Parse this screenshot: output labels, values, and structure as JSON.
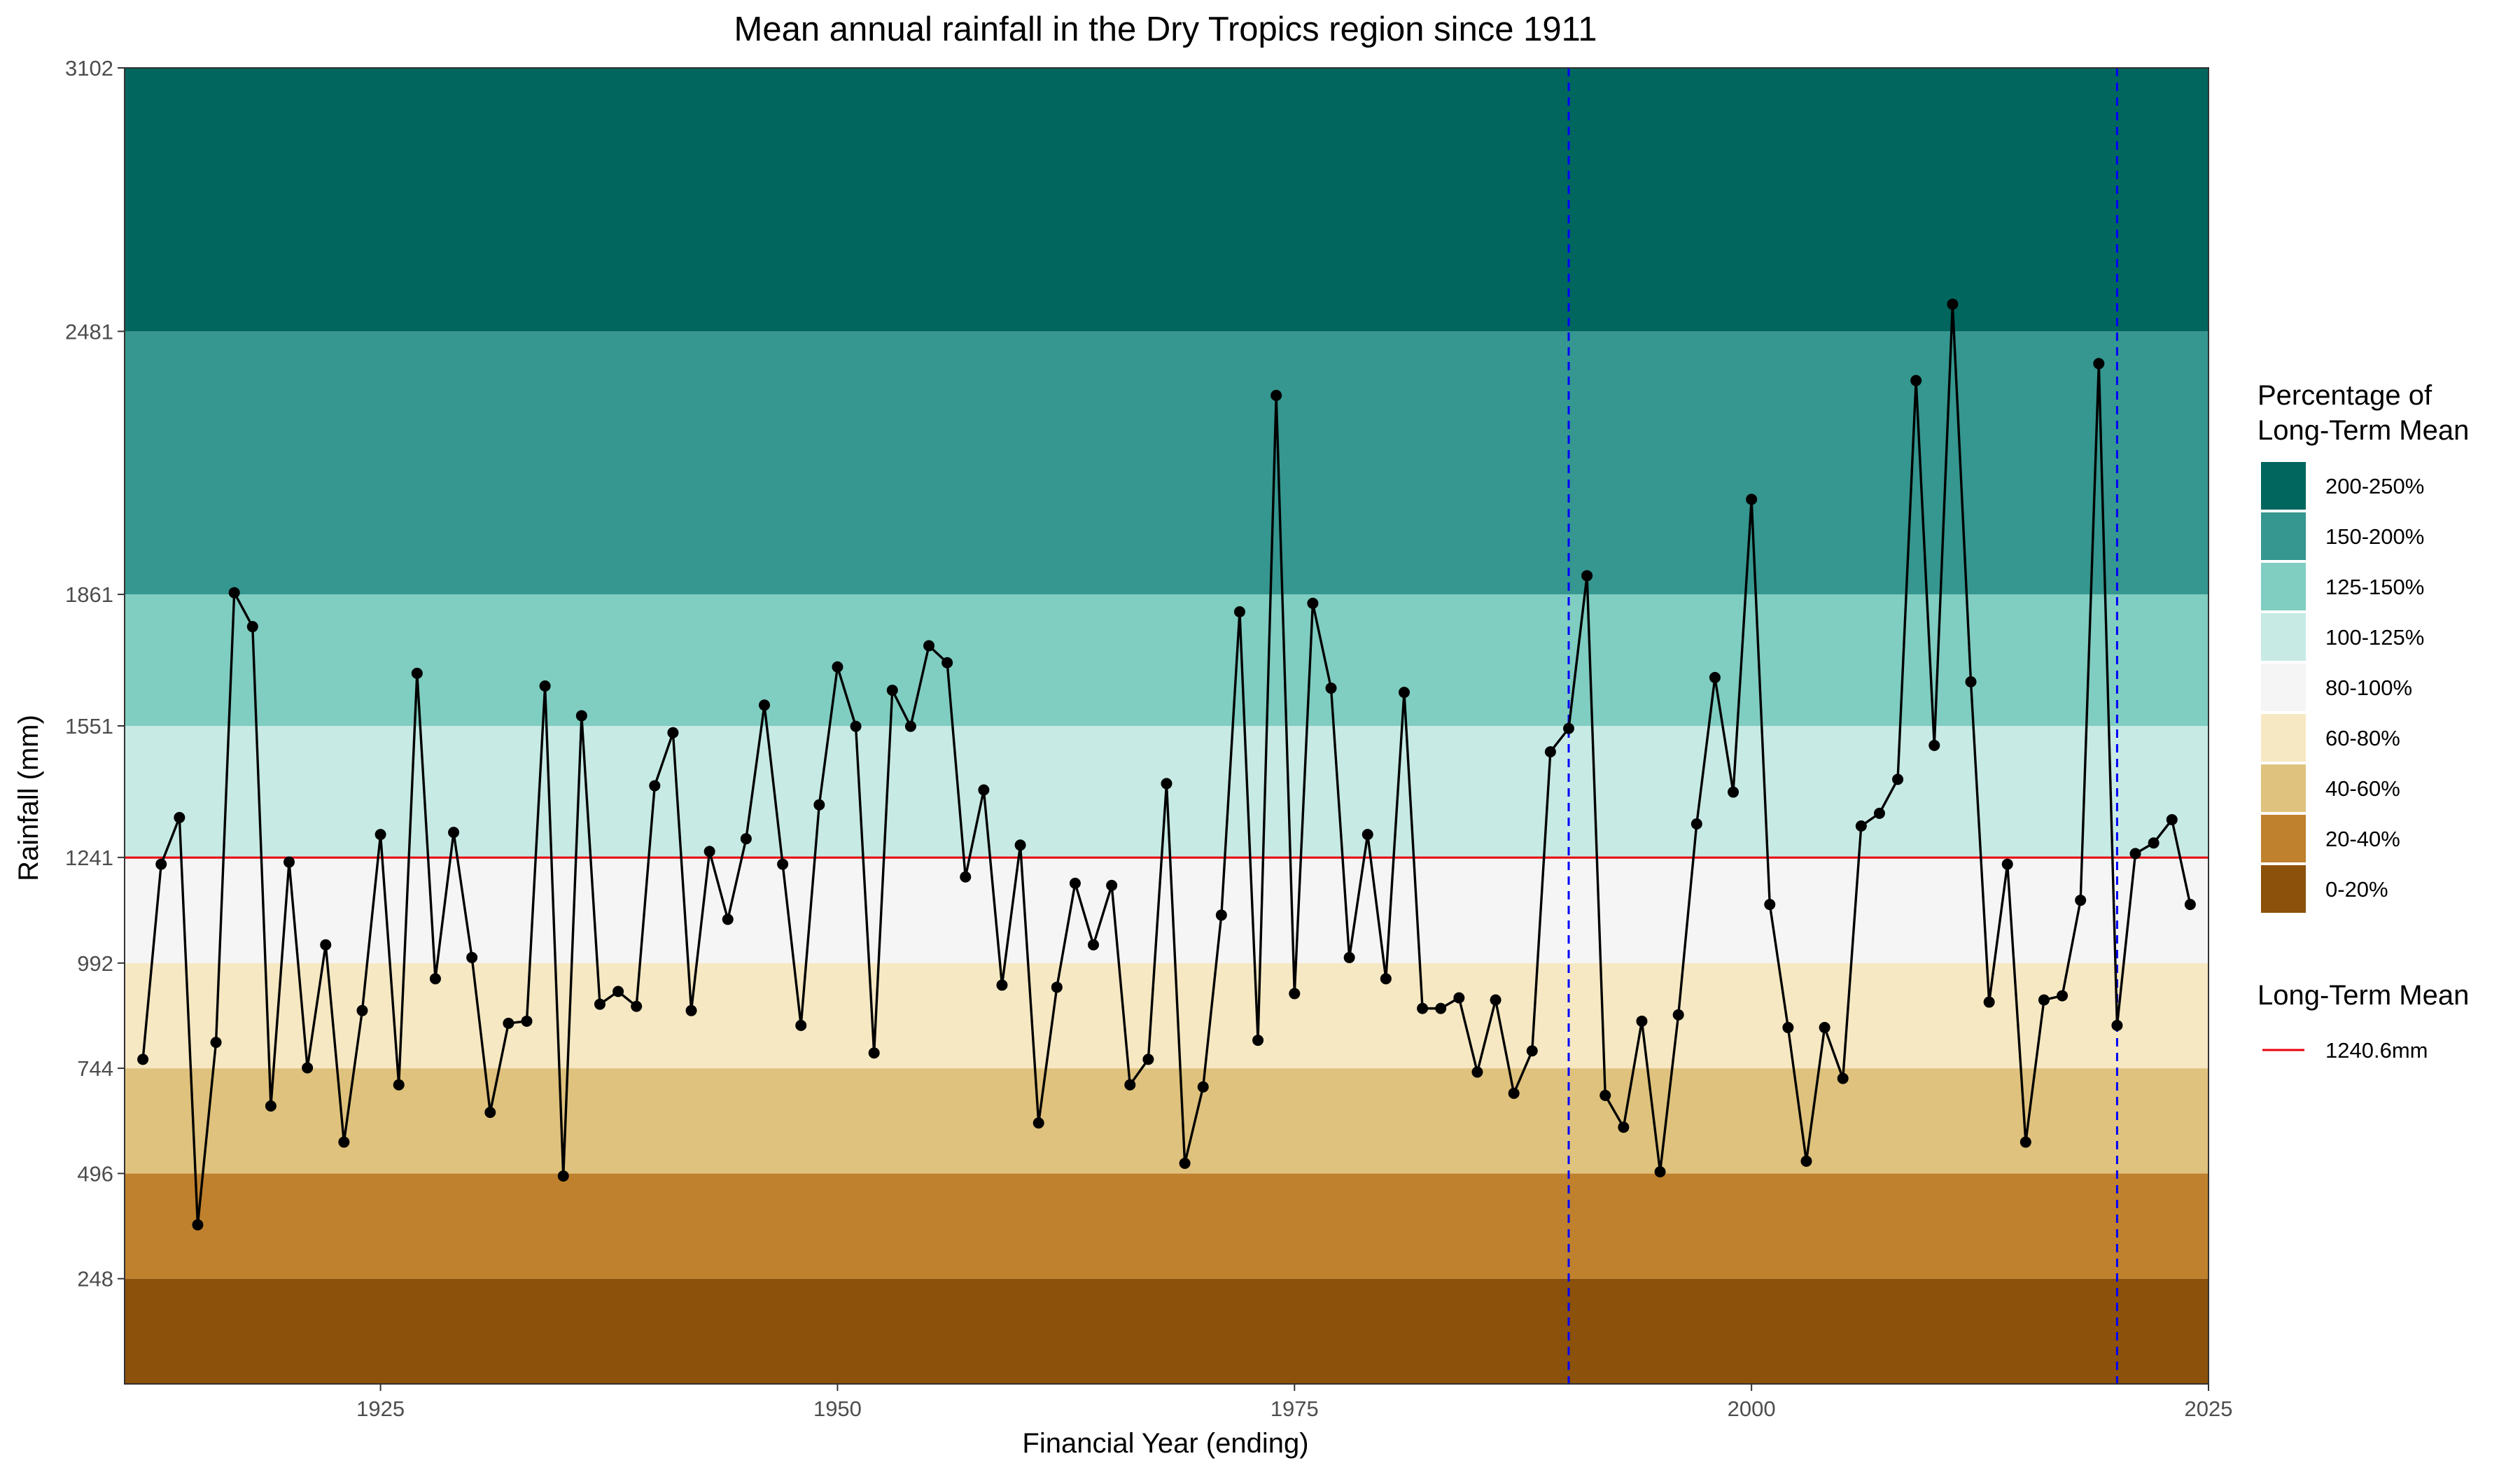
{
  "chart_data": {
    "type": "line",
    "title": "Mean annual rainfall in the Dry Tropics region since 1911",
    "xlabel": "Financial Year (ending)",
    "ylabel": "Rainfall (mm)",
    "xlim": [
      1911,
      2025
    ],
    "ylim": [
      0,
      3102
    ],
    "x_ticks": [
      1925,
      1950,
      1975,
      2000,
      2025
    ],
    "y_ticks": [
      248,
      496,
      744,
      992,
      1241,
      1551,
      1861,
      2481,
      3102
    ],
    "grid": false,
    "bands": [
      {
        "label": "0-20%",
        "from": 0,
        "to": 248,
        "color": "#8c510a"
      },
      {
        "label": "20-40%",
        "from": 248,
        "to": 496,
        "color": "#bf812d"
      },
      {
        "label": "40-60%",
        "from": 496,
        "to": 744,
        "color": "#dfc27d"
      },
      {
        "label": "60-80%",
        "from": 744,
        "to": 992,
        "color": "#f6e8c3"
      },
      {
        "label": "80-100%",
        "from": 992,
        "to": 1241,
        "color": "#f5f5f5"
      },
      {
        "label": "100-125%",
        "from": 1241,
        "to": 1551,
        "color": "#c7eae5"
      },
      {
        "label": "125-150%",
        "from": 1551,
        "to": 1861,
        "color": "#80cdc1"
      },
      {
        "label": "150-200%",
        "from": 1861,
        "to": 2481,
        "color": "#35978f"
      },
      {
        "label": "200-250%",
        "from": 2481,
        "to": 3102,
        "color": "#01665e"
      }
    ],
    "legend": {
      "title_line1": "Percentage of",
      "title_line2": "Long-Term Mean",
      "placement": "right"
    },
    "mean_line": {
      "title": "Long-Term Mean",
      "label": "1240.6mm",
      "value": 1240.6,
      "color": "#e8000b"
    },
    "vlines": [
      {
        "x": 1990,
        "color": "#0000ff",
        "style": "dashed"
      },
      {
        "x": 2020,
        "color": "#0000ff",
        "style": "dashed"
      }
    ],
    "series": [
      {
        "color": "#000000",
        "x": [
          1912,
          1913,
          1914,
          1915,
          1916,
          1917,
          1918,
          1919,
          1920,
          1921,
          1922,
          1923,
          1924,
          1925,
          1926,
          1927,
          1928,
          1929,
          1930,
          1931,
          1932,
          1933,
          1934,
          1935,
          1936,
          1937,
          1938,
          1939,
          1940,
          1941,
          1942,
          1943,
          1944,
          1945,
          1946,
          1947,
          1948,
          1949,
          1950,
          1951,
          1952,
          1953,
          1954,
          1955,
          1956,
          1957,
          1958,
          1959,
          1960,
          1961,
          1962,
          1963,
          1964,
          1965,
          1966,
          1967,
          1968,
          1969,
          1970,
          1971,
          1972,
          1973,
          1974,
          1975,
          1976,
          1977,
          1978,
          1979,
          1980,
          1981,
          1982,
          1983,
          1984,
          1985,
          1986,
          1987,
          1988,
          1989,
          1990,
          1991,
          1992,
          1993,
          1994,
          1995,
          1996,
          1997,
          1998,
          1999,
          2000,
          2001,
          2002,
          2003,
          2004,
          2005,
          2006,
          2007,
          2008,
          2009,
          2010,
          2011,
          2012,
          2013,
          2014,
          2015,
          2016,
          2017,
          2018,
          2019,
          2020,
          2021,
          2022,
          2023,
          2024
        ],
        "values": [
          765,
          1225,
          1335,
          375,
          805,
          1865,
          1785,
          655,
          1230,
          745,
          1035,
          570,
          880,
          1295,
          705,
          1675,
          955,
          1300,
          1005,
          640,
          850,
          855,
          1645,
          490,
          1575,
          895,
          925,
          890,
          1410,
          1535,
          880,
          1255,
          1095,
          1285,
          1600,
          1225,
          845,
          1365,
          1690,
          1550,
          780,
          1635,
          1550,
          1740,
          1700,
          1195,
          1400,
          940,
          1270,
          615,
          935,
          1180,
          1035,
          1175,
          705,
          765,
          1415,
          520,
          700,
          1105,
          1820,
          810,
          2330,
          920,
          1840,
          1640,
          1005,
          1295,
          955,
          1630,
          885,
          885,
          910,
          735,
          905,
          685,
          785,
          1490,
          1545,
          1905,
          680,
          605,
          855,
          500,
          870,
          1320,
          1665,
          1395,
          2085,
          1130,
          840,
          525,
          840,
          720,
          1315,
          1345,
          1425,
          2365,
          1505,
          2545,
          1655,
          900,
          1225,
          570,
          905,
          915,
          1140,
          2405,
          845,
          1250,
          1275,
          1330,
          1130
        ]
      }
    ]
  }
}
